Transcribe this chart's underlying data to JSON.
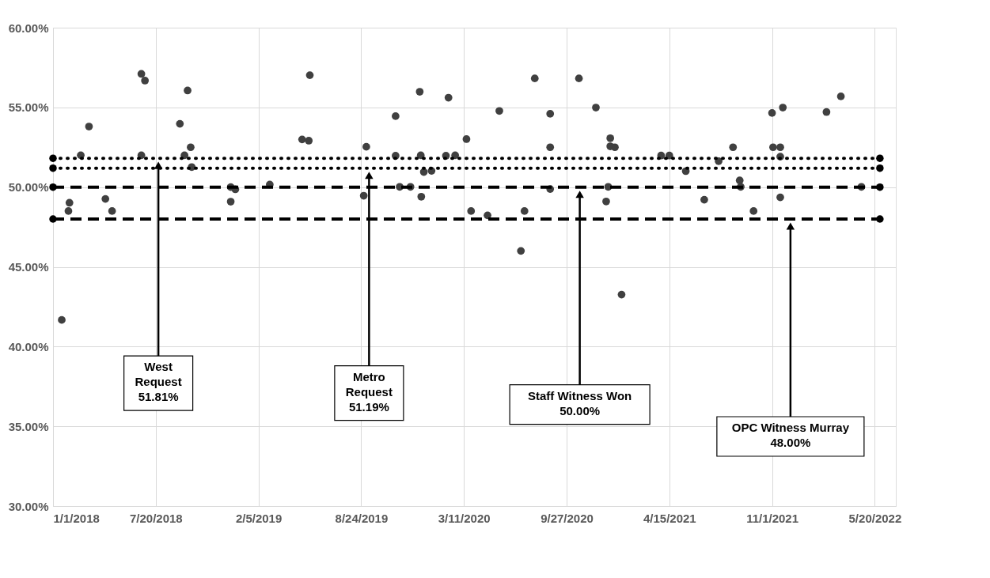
{
  "chart_data": {
    "type": "scatter",
    "xlim": [
      "2018-01-01",
      "2022-06-30"
    ],
    "xticks": [
      {
        "value": "2018-01-01",
        "label": "1/1/2018"
      },
      {
        "value": "2018-07-20",
        "label": "7/20/2018"
      },
      {
        "value": "2019-02-05",
        "label": "2/5/2019"
      },
      {
        "value": "2019-08-24",
        "label": "8/24/2019"
      },
      {
        "value": "2020-03-11",
        "label": "3/11/2020"
      },
      {
        "value": "2020-09-27",
        "label": "9/27/2020"
      },
      {
        "value": "2021-04-15",
        "label": "4/15/2021"
      },
      {
        "value": "2021-11-01",
        "label": "11/1/2021"
      },
      {
        "value": "2022-05-20",
        "label": "5/20/2022"
      }
    ],
    "ylim": [
      30,
      60
    ],
    "yticks": [
      {
        "value": 30,
        "label": "30.00%"
      },
      {
        "value": 35,
        "label": "35.00%"
      },
      {
        "value": 40,
        "label": "40.00%"
      },
      {
        "value": 45,
        "label": "45.00%"
      },
      {
        "value": 50,
        "label": "50.00%"
      },
      {
        "value": 55,
        "label": "55.00%"
      },
      {
        "value": 60,
        "label": "60.00%"
      }
    ],
    "grid": true,
    "marker": "circle",
    "series": [
      {
        "color": "#404040",
        "x": [
          "2018-01-18",
          "2018-01-31",
          "2018-02-02",
          "2018-02-24",
          "2018-03-12",
          "2018-04-13",
          "2018-04-26",
          "2018-06-22",
          "2018-06-22",
          "2018-06-29",
          "2018-09-05",
          "2018-09-14",
          "2018-09-20",
          "2018-09-26",
          "2018-09-28",
          "2018-12-13",
          "2018-12-13",
          "2018-12-22",
          "2019-02-27",
          "2019-05-01",
          "2019-05-14",
          "2019-05-16",
          "2019-08-29",
          "2019-09-03",
          "2019-10-30",
          "2019-10-30",
          "2019-11-07",
          "2019-11-28",
          "2019-12-16",
          "2019-12-18",
          "2019-12-19",
          "2019-12-24",
          "2020-01-08",
          "2020-02-05",
          "2020-02-10",
          "2020-02-23",
          "2020-03-16",
          "2020-03-25",
          "2020-04-26",
          "2020-05-19",
          "2020-06-30",
          "2020-07-07",
          "2020-07-27",
          "2020-08-26",
          "2020-08-26",
          "2020-08-26",
          "2020-10-21",
          "2020-11-23",
          "2020-12-13",
          "2020-12-17",
          "2020-12-21",
          "2020-12-21",
          "2020-12-30",
          "2021-01-12",
          "2021-03-30",
          "2021-04-15",
          "2021-05-17",
          "2021-06-22",
          "2021-07-20",
          "2021-08-17",
          "2021-08-30",
          "2021-09-01",
          "2021-09-26",
          "2021-11-01",
          "2021-11-03",
          "2021-11-17",
          "2021-11-17",
          "2021-11-17",
          "2021-11-22",
          "2022-02-15",
          "2022-03-15",
          "2022-04-24"
        ],
        "values": [
          41.67,
          48.5,
          49.02,
          52.0,
          53.8,
          49.26,
          48.5,
          57.1,
          52.0,
          56.68,
          53.97,
          52.0,
          56.06,
          52.5,
          51.26,
          50.0,
          49.09,
          49.86,
          50.16,
          52.99,
          52.91,
          57.02,
          49.46,
          52.53,
          54.45,
          51.97,
          50.02,
          50.02,
          55.98,
          52.0,
          49.4,
          50.95,
          51.02,
          51.97,
          55.61,
          52.0,
          53.01,
          48.5,
          48.23,
          54.78,
          46.0,
          48.5,
          56.82,
          54.6,
          52.5,
          49.88,
          56.82,
          54.99,
          49.1,
          50.02,
          53.07,
          52.56,
          52.5,
          43.26,
          51.98,
          51.98,
          51.0,
          49.21,
          51.63,
          52.5,
          50.42,
          50.02,
          48.5,
          54.65,
          52.5,
          52.5,
          51.91,
          49.36,
          54.99,
          54.71,
          55.69,
          50.02
        ]
      },
      {
        "type": "line",
        "color": "#000000",
        "line_style": "dotted",
        "x": [
          "2018-01-01",
          "2022-05-30"
        ],
        "values": [
          51.81,
          51.81
        ]
      },
      {
        "type": "line",
        "color": "#000000",
        "line_style": "dotted",
        "x": [
          "2018-01-01",
          "2022-05-30"
        ],
        "values": [
          51.19,
          51.19
        ]
      },
      {
        "type": "line",
        "color": "#000000",
        "line_style": "dashed",
        "x": [
          "2018-01-01",
          "2022-05-30"
        ],
        "values": [
          50.0,
          50.0
        ]
      },
      {
        "type": "line",
        "color": "#000000",
        "line_style": "dashed",
        "x": [
          "2018-01-01",
          "2022-05-30"
        ],
        "values": [
          48.0,
          48.0
        ]
      }
    ],
    "annotations": [
      "West\nRequest\n51.81%",
      "Metro\nRequest\n51.19%",
      "Staff Witness Won\n50.00%",
      "OPC Witness Murray\n48.00%"
    ]
  }
}
